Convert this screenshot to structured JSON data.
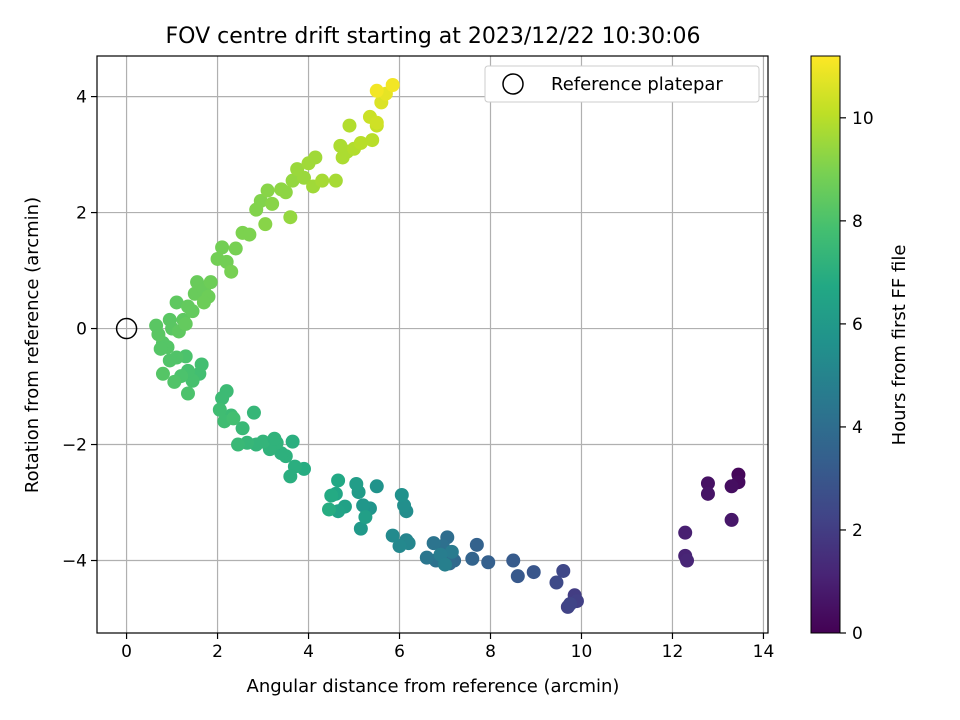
{
  "chart_data": {
    "type": "scatter",
    "title": "FOV centre drift starting at 2023/12/22 10:30:06",
    "xlabel": "Angular distance from reference (arcmin)",
    "ylabel": "Rotation from reference (arcmin)",
    "xlim": [
      -0.65,
      14.1
    ],
    "ylim": [
      -5.25,
      4.7
    ],
    "xticks": [
      0,
      2,
      4,
      6,
      8,
      10,
      12,
      14
    ],
    "yticks": [
      -4,
      -2,
      0,
      2,
      4
    ],
    "grid": true,
    "legend": {
      "location": "upper right",
      "entries": [
        "Reference platepar"
      ]
    },
    "reference_point": {
      "x": 0,
      "y": 0
    },
    "colorbar": {
      "label": "Hours from first FF file",
      "range": [
        0,
        11.2
      ],
      "ticks": [
        0,
        2,
        4,
        6,
        8,
        10
      ],
      "colormap": "viridis"
    },
    "points": [
      [
        13.45,
        -2.52,
        0.2
      ],
      [
        13.45,
        -2.65,
        0.3
      ],
      [
        13.3,
        -2.72,
        0.4
      ],
      [
        12.78,
        -2.67,
        0.5
      ],
      [
        12.78,
        -2.85,
        0.6
      ],
      [
        13.3,
        -3.3,
        0.7
      ],
      [
        12.28,
        -3.52,
        1.0
      ],
      [
        12.28,
        -3.92,
        1.1
      ],
      [
        12.32,
        -4.0,
        1.2
      ],
      [
        9.85,
        -4.6,
        2.0
      ],
      [
        9.9,
        -4.7,
        2.1
      ],
      [
        9.7,
        -4.8,
        2.2
      ],
      [
        9.75,
        -4.75,
        2.3
      ],
      [
        9.6,
        -4.18,
        2.4
      ],
      [
        9.45,
        -4.38,
        2.5
      ],
      [
        8.95,
        -4.2,
        3.0
      ],
      [
        8.6,
        -4.27,
        3.1
      ],
      [
        8.5,
        -4.0,
        3.2
      ],
      [
        7.95,
        -4.03,
        3.4
      ],
      [
        7.7,
        -3.73,
        3.5
      ],
      [
        7.6,
        -3.97,
        3.6
      ],
      [
        7.2,
        -4.0,
        3.8
      ],
      [
        7.1,
        -4.05,
        3.9
      ],
      [
        7.05,
        -3.6,
        4.0
      ],
      [
        6.95,
        -3.75,
        4.1
      ],
      [
        6.8,
        -4.0,
        4.2
      ],
      [
        6.75,
        -3.7,
        4.3
      ],
      [
        6.6,
        -3.95,
        4.4
      ],
      [
        7.15,
        -3.85,
        4.6
      ],
      [
        6.9,
        -3.9,
        4.7
      ],
      [
        7.0,
        -4.07,
        4.8
      ],
      [
        6.15,
        -3.65,
        5.0
      ],
      [
        6.2,
        -3.7,
        5.1
      ],
      [
        6.0,
        -3.75,
        5.2
      ],
      [
        5.85,
        -3.57,
        5.3
      ],
      [
        6.15,
        -3.15,
        5.4
      ],
      [
        6.1,
        -3.05,
        5.5
      ],
      [
        6.05,
        -2.87,
        5.6
      ],
      [
        5.5,
        -2.72,
        5.7
      ],
      [
        5.35,
        -3.1,
        5.8
      ],
      [
        5.2,
        -3.05,
        5.9
      ],
      [
        5.15,
        -3.45,
        6.0
      ],
      [
        5.1,
        -2.82,
        6.1
      ],
      [
        5.05,
        -2.68,
        6.2
      ],
      [
        5.25,
        -3.25,
        6.3
      ],
      [
        4.8,
        -3.07,
        6.4
      ],
      [
        4.65,
        -3.15,
        6.5
      ],
      [
        4.6,
        -2.85,
        6.6
      ],
      [
        4.65,
        -2.62,
        6.7
      ],
      [
        4.5,
        -2.88,
        6.8
      ],
      [
        4.45,
        -3.12,
        6.9
      ],
      [
        3.9,
        -2.42,
        6.9
      ],
      [
        3.7,
        -2.38,
        7.0
      ],
      [
        3.6,
        -2.55,
        7.0
      ],
      [
        3.65,
        -1.95,
        7.0
      ],
      [
        3.5,
        -2.2,
        7.1
      ],
      [
        3.4,
        -2.15,
        7.1
      ],
      [
        3.3,
        -1.97,
        7.2
      ],
      [
        3.15,
        -2.08,
        7.2
      ],
      [
        3.0,
        -1.95,
        7.3
      ],
      [
        2.85,
        -2.0,
        7.3
      ],
      [
        2.65,
        -1.97,
        7.4
      ],
      [
        2.8,
        -1.45,
        7.4
      ],
      [
        2.55,
        -1.72,
        7.5
      ],
      [
        2.45,
        -2.0,
        7.5
      ],
      [
        2.3,
        -1.5,
        7.6
      ],
      [
        2.2,
        -1.08,
        7.6
      ],
      [
        2.1,
        -1.2,
        7.6
      ],
      [
        2.05,
        -1.4,
        7.7
      ],
      [
        2.15,
        -1.6,
        7.7
      ],
      [
        2.35,
        -1.55,
        7.8
      ],
      [
        3.25,
        -1.9,
        7.2
      ],
      [
        1.6,
        -0.78,
        7.8
      ],
      [
        1.65,
        -0.62,
        7.8
      ],
      [
        1.45,
        -0.9,
        7.9
      ],
      [
        1.35,
        -0.73,
        7.9
      ],
      [
        1.3,
        -0.48,
        8.0
      ],
      [
        1.35,
        -1.12,
        8.0
      ],
      [
        1.2,
        -0.82,
        8.0
      ],
      [
        1.1,
        -0.5,
        8.1
      ],
      [
        1.05,
        -0.92,
        8.1
      ],
      [
        0.95,
        -0.55,
        8.1
      ],
      [
        0.9,
        -0.32,
        8.2
      ],
      [
        0.8,
        -0.25,
        8.2
      ],
      [
        0.75,
        -0.35,
        8.2
      ],
      [
        0.8,
        -0.78,
        8.2
      ],
      [
        0.7,
        -0.1,
        8.3
      ],
      [
        0.65,
        0.05,
        8.3
      ],
      [
        0.95,
        0.15,
        8.3
      ],
      [
        1.0,
        0.0,
        8.3
      ],
      [
        1.1,
        0.45,
        8.4
      ],
      [
        1.15,
        -0.05,
        8.4
      ],
      [
        1.25,
        0.15,
        8.4
      ],
      [
        1.35,
        0.38,
        8.5
      ],
      [
        1.3,
        0.08,
        8.5
      ],
      [
        1.45,
        0.3,
        8.5
      ],
      [
        1.5,
        0.6,
        8.6
      ],
      [
        1.55,
        0.8,
        8.6
      ],
      [
        1.7,
        0.67,
        8.6
      ],
      [
        1.8,
        0.55,
        8.7
      ],
      [
        1.85,
        0.8,
        8.7
      ],
      [
        1.7,
        0.45,
        8.7
      ],
      [
        2.0,
        1.2,
        8.8
      ],
      [
        2.1,
        1.4,
        8.8
      ],
      [
        2.2,
        1.15,
        8.8
      ],
      [
        2.3,
        0.98,
        8.9
      ],
      [
        2.4,
        1.38,
        8.9
      ],
      [
        2.55,
        1.65,
        9.0
      ],
      [
        2.7,
        1.62,
        9.0
      ],
      [
        2.85,
        2.05,
        9.1
      ],
      [
        2.95,
        2.2,
        9.1
      ],
      [
        3.1,
        2.38,
        9.2
      ],
      [
        3.05,
        1.8,
        9.2
      ],
      [
        3.2,
        2.15,
        9.2
      ],
      [
        3.4,
        2.4,
        9.3
      ],
      [
        3.5,
        2.35,
        9.3
      ],
      [
        3.65,
        2.55,
        9.4
      ],
      [
        3.6,
        1.92,
        9.4
      ],
      [
        3.75,
        2.75,
        9.5
      ],
      [
        3.9,
        2.6,
        9.5
      ],
      [
        4.0,
        2.85,
        9.6
      ],
      [
        4.15,
        2.95,
        9.6
      ],
      [
        4.1,
        2.45,
        9.6
      ],
      [
        4.3,
        2.55,
        9.7
      ],
      [
        4.6,
        2.55,
        9.7
      ],
      [
        4.75,
        2.95,
        9.8
      ],
      [
        4.85,
        3.05,
        9.8
      ],
      [
        4.7,
        3.15,
        9.8
      ],
      [
        5.0,
        3.1,
        9.9
      ],
      [
        4.9,
        3.5,
        9.9
      ],
      [
        5.15,
        3.2,
        10.0
      ],
      [
        5.4,
        3.25,
        10.0
      ],
      [
        5.5,
        3.5,
        10.2
      ],
      [
        5.35,
        3.65,
        10.3
      ],
      [
        5.5,
        3.55,
        10.4
      ],
      [
        5.6,
        3.9,
        10.6
      ],
      [
        5.7,
        4.05,
        10.8
      ],
      [
        5.85,
        4.2,
        11.0
      ],
      [
        5.5,
        4.1,
        11.0
      ]
    ]
  }
}
